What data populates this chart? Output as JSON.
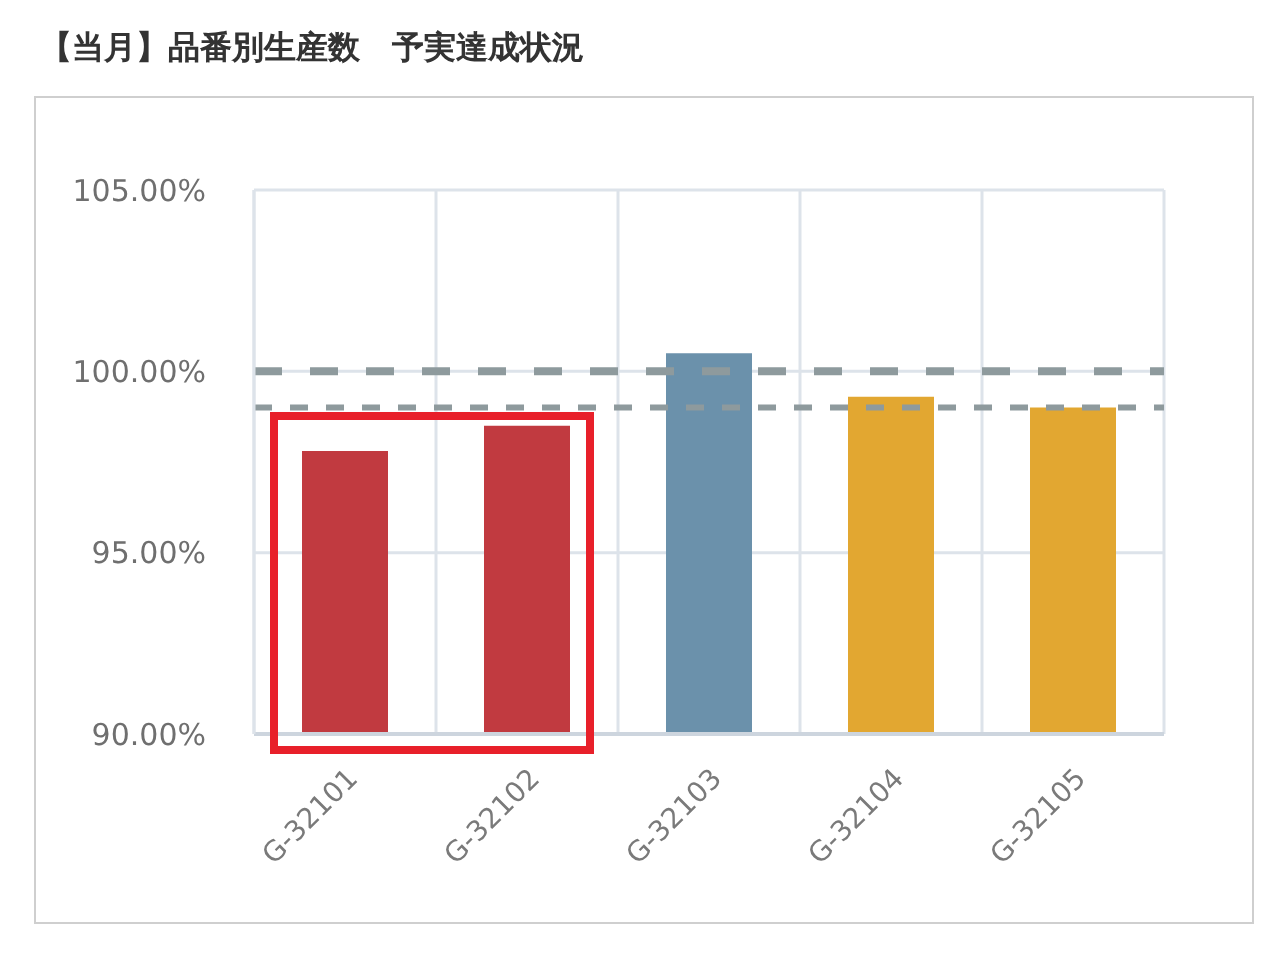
{
  "chart_data": {
    "type": "bar",
    "title": "【当月】品番別生産数　予実達成状況",
    "categories": [
      "G-32101",
      "G-32102",
      "G-32103",
      "G-32104",
      "G-32105"
    ],
    "values": [
      97.8,
      98.5,
      100.5,
      99.3,
      99.0
    ],
    "colors": [
      "#c13a40",
      "#c13a40",
      "#6b91ab",
      "#e2a731",
      "#e2a731"
    ],
    "ylim": [
      90,
      105
    ],
    "yticks": [
      {
        "value": 90,
        "label": "90.00%"
      },
      {
        "value": 95,
        "label": "95.00%"
      },
      {
        "value": 100,
        "label": "100.00%"
      },
      {
        "value": 105,
        "label": "105.00%"
      }
    ],
    "grid": true,
    "ref_lines": [
      {
        "axis": "y",
        "value": 100,
        "color": "#8e9a9d",
        "line_style": "dashed"
      },
      {
        "axis": "y",
        "value": 99,
        "color": "#8e9a9d",
        "line_style": "dashed"
      }
    ]
  }
}
